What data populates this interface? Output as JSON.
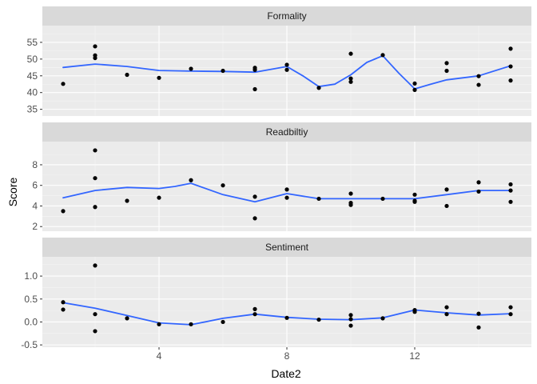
{
  "chart_data": {
    "type": "scatter",
    "facet": "rows",
    "xlabel": "Date2",
    "ylabel": "Score",
    "xlim": [
      0.35,
      15.65
    ],
    "x_ticks": [
      4,
      8,
      12
    ],
    "smooth_color": "#3366ff",
    "point_color": "#000000",
    "panels": [
      {
        "name": "Formality",
        "ylim": [
          33,
          60
        ],
        "y_ticks": [
          35,
          40,
          45,
          50,
          55
        ],
        "points": [
          {
            "x": 1,
            "y": 42.6
          },
          {
            "x": 2,
            "y": 53.8
          },
          {
            "x": 2,
            "y": 51.1
          },
          {
            "x": 2,
            "y": 50.3
          },
          {
            "x": 3,
            "y": 45.3
          },
          {
            "x": 4,
            "y": 44.4
          },
          {
            "x": 5,
            "y": 47.1
          },
          {
            "x": 6,
            "y": 46.5
          },
          {
            "x": 7,
            "y": 47.4
          },
          {
            "x": 7,
            "y": 46.8
          },
          {
            "x": 7,
            "y": 41.0
          },
          {
            "x": 8,
            "y": 48.3
          },
          {
            "x": 8,
            "y": 46.8
          },
          {
            "x": 9,
            "y": 41.4
          },
          {
            "x": 10,
            "y": 51.6
          },
          {
            "x": 10,
            "y": 44.2
          },
          {
            "x": 10,
            "y": 43.2
          },
          {
            "x": 11,
            "y": 51.2
          },
          {
            "x": 12,
            "y": 42.7
          },
          {
            "x": 12,
            "y": 40.8
          },
          {
            "x": 13,
            "y": 48.8
          },
          {
            "x": 13,
            "y": 46.5
          },
          {
            "x": 14,
            "y": 44.9
          },
          {
            "x": 14,
            "y": 42.3
          },
          {
            "x": 15,
            "y": 53.1
          },
          {
            "x": 15,
            "y": 47.8
          },
          {
            "x": 15,
            "y": 43.6
          }
        ],
        "smooth": [
          {
            "x": 1,
            "y": 47.5
          },
          {
            "x": 2,
            "y": 48.5
          },
          {
            "x": 3,
            "y": 47.8
          },
          {
            "x": 4,
            "y": 46.6
          },
          {
            "x": 5,
            "y": 46.4
          },
          {
            "x": 6,
            "y": 46.3
          },
          {
            "x": 7,
            "y": 46.1
          },
          {
            "x": 8,
            "y": 47.8
          },
          {
            "x": 8.5,
            "y": 45.0
          },
          {
            "x": 9,
            "y": 41.8
          },
          {
            "x": 9.5,
            "y": 42.5
          },
          {
            "x": 10,
            "y": 45.3
          },
          {
            "x": 10.5,
            "y": 49.0
          },
          {
            "x": 11,
            "y": 51.0
          },
          {
            "x": 11.5,
            "y": 45.8
          },
          {
            "x": 12,
            "y": 41.1
          },
          {
            "x": 12.5,
            "y": 42.5
          },
          {
            "x": 13,
            "y": 43.8
          },
          {
            "x": 14,
            "y": 45.0
          },
          {
            "x": 15,
            "y": 48.0
          }
        ]
      },
      {
        "name": "Readbiltiy",
        "ylim": [
          1.55,
          10.25
        ],
        "y_ticks": [
          2,
          4,
          6,
          8
        ],
        "points": [
          {
            "x": 1,
            "y": 3.5
          },
          {
            "x": 2,
            "y": 9.4
          },
          {
            "x": 2,
            "y": 6.7
          },
          {
            "x": 2,
            "y": 3.9
          },
          {
            "x": 3,
            "y": 4.5
          },
          {
            "x": 4,
            "y": 4.8
          },
          {
            "x": 5,
            "y": 6.5
          },
          {
            "x": 6,
            "y": 6.0
          },
          {
            "x": 7,
            "y": 4.9
          },
          {
            "x": 7,
            "y": 2.8
          },
          {
            "x": 8,
            "y": 5.6
          },
          {
            "x": 8,
            "y": 4.8
          },
          {
            "x": 9,
            "y": 4.7
          },
          {
            "x": 10,
            "y": 5.2
          },
          {
            "x": 10,
            "y": 4.3
          },
          {
            "x": 10,
            "y": 4.1
          },
          {
            "x": 11,
            "y": 4.7
          },
          {
            "x": 12,
            "y": 5.1
          },
          {
            "x": 12,
            "y": 4.5
          },
          {
            "x": 12,
            "y": 4.4
          },
          {
            "x": 13,
            "y": 5.6
          },
          {
            "x": 13,
            "y": 4.0
          },
          {
            "x": 14,
            "y": 6.3
          },
          {
            "x": 14,
            "y": 5.4
          },
          {
            "x": 15,
            "y": 6.1
          },
          {
            "x": 15,
            "y": 5.5
          },
          {
            "x": 15,
            "y": 4.4
          }
        ],
        "smooth": [
          {
            "x": 1,
            "y": 4.8
          },
          {
            "x": 2,
            "y": 5.5
          },
          {
            "x": 3,
            "y": 5.8
          },
          {
            "x": 4,
            "y": 5.7
          },
          {
            "x": 4.5,
            "y": 5.9
          },
          {
            "x": 5,
            "y": 6.2
          },
          {
            "x": 6,
            "y": 5.1
          },
          {
            "x": 7,
            "y": 4.4
          },
          {
            "x": 8,
            "y": 5.2
          },
          {
            "x": 9,
            "y": 4.7
          },
          {
            "x": 10,
            "y": 4.7
          },
          {
            "x": 11,
            "y": 4.7
          },
          {
            "x": 12,
            "y": 4.7
          },
          {
            "x": 13,
            "y": 5.1
          },
          {
            "x": 14,
            "y": 5.5
          },
          {
            "x": 15,
            "y": 5.5
          }
        ]
      },
      {
        "name": "Sentiment",
        "ylim": [
          -0.55,
          1.42
        ],
        "y_ticks": [
          -0.5,
          0.0,
          0.5,
          1.0
        ],
        "y_tick_labels": [
          "-0.5",
          "0.0",
          "0.5",
          "1.0"
        ],
        "points": [
          {
            "x": 1,
            "y": 0.27
          },
          {
            "x": 1,
            "y": 0.43
          },
          {
            "x": 2,
            "y": 1.23
          },
          {
            "x": 2,
            "y": 0.17
          },
          {
            "x": 2,
            "y": -0.2
          },
          {
            "x": 3,
            "y": 0.08
          },
          {
            "x": 4,
            "y": -0.05
          },
          {
            "x": 5,
            "y": -0.05
          },
          {
            "x": 6,
            "y": 0.0
          },
          {
            "x": 7,
            "y": 0.28
          },
          {
            "x": 7,
            "y": 0.17
          },
          {
            "x": 8,
            "y": 0.09
          },
          {
            "x": 9,
            "y": 0.05
          },
          {
            "x": 10,
            "y": 0.15
          },
          {
            "x": 10,
            "y": 0.06
          },
          {
            "x": 10,
            "y": -0.08
          },
          {
            "x": 11,
            "y": 0.08
          },
          {
            "x": 12,
            "y": 0.26
          },
          {
            "x": 12,
            "y": 0.22
          },
          {
            "x": 13,
            "y": 0.32
          },
          {
            "x": 13,
            "y": 0.17
          },
          {
            "x": 14,
            "y": 0.18
          },
          {
            "x": 14,
            "y": -0.12
          },
          {
            "x": 15,
            "y": 0.32
          },
          {
            "x": 15,
            "y": 0.17
          }
        ],
        "smooth": [
          {
            "x": 1,
            "y": 0.42
          },
          {
            "x": 2,
            "y": 0.3
          },
          {
            "x": 3,
            "y": 0.14
          },
          {
            "x": 4,
            "y": -0.02
          },
          {
            "x": 5,
            "y": -0.06
          },
          {
            "x": 6,
            "y": 0.08
          },
          {
            "x": 7,
            "y": 0.17
          },
          {
            "x": 8,
            "y": 0.1
          },
          {
            "x": 9,
            "y": 0.06
          },
          {
            "x": 10,
            "y": 0.05
          },
          {
            "x": 11,
            "y": 0.09
          },
          {
            "x": 12,
            "y": 0.26
          },
          {
            "x": 13,
            "y": 0.2
          },
          {
            "x": 14,
            "y": 0.15
          },
          {
            "x": 15,
            "y": 0.18
          }
        ]
      }
    ]
  }
}
